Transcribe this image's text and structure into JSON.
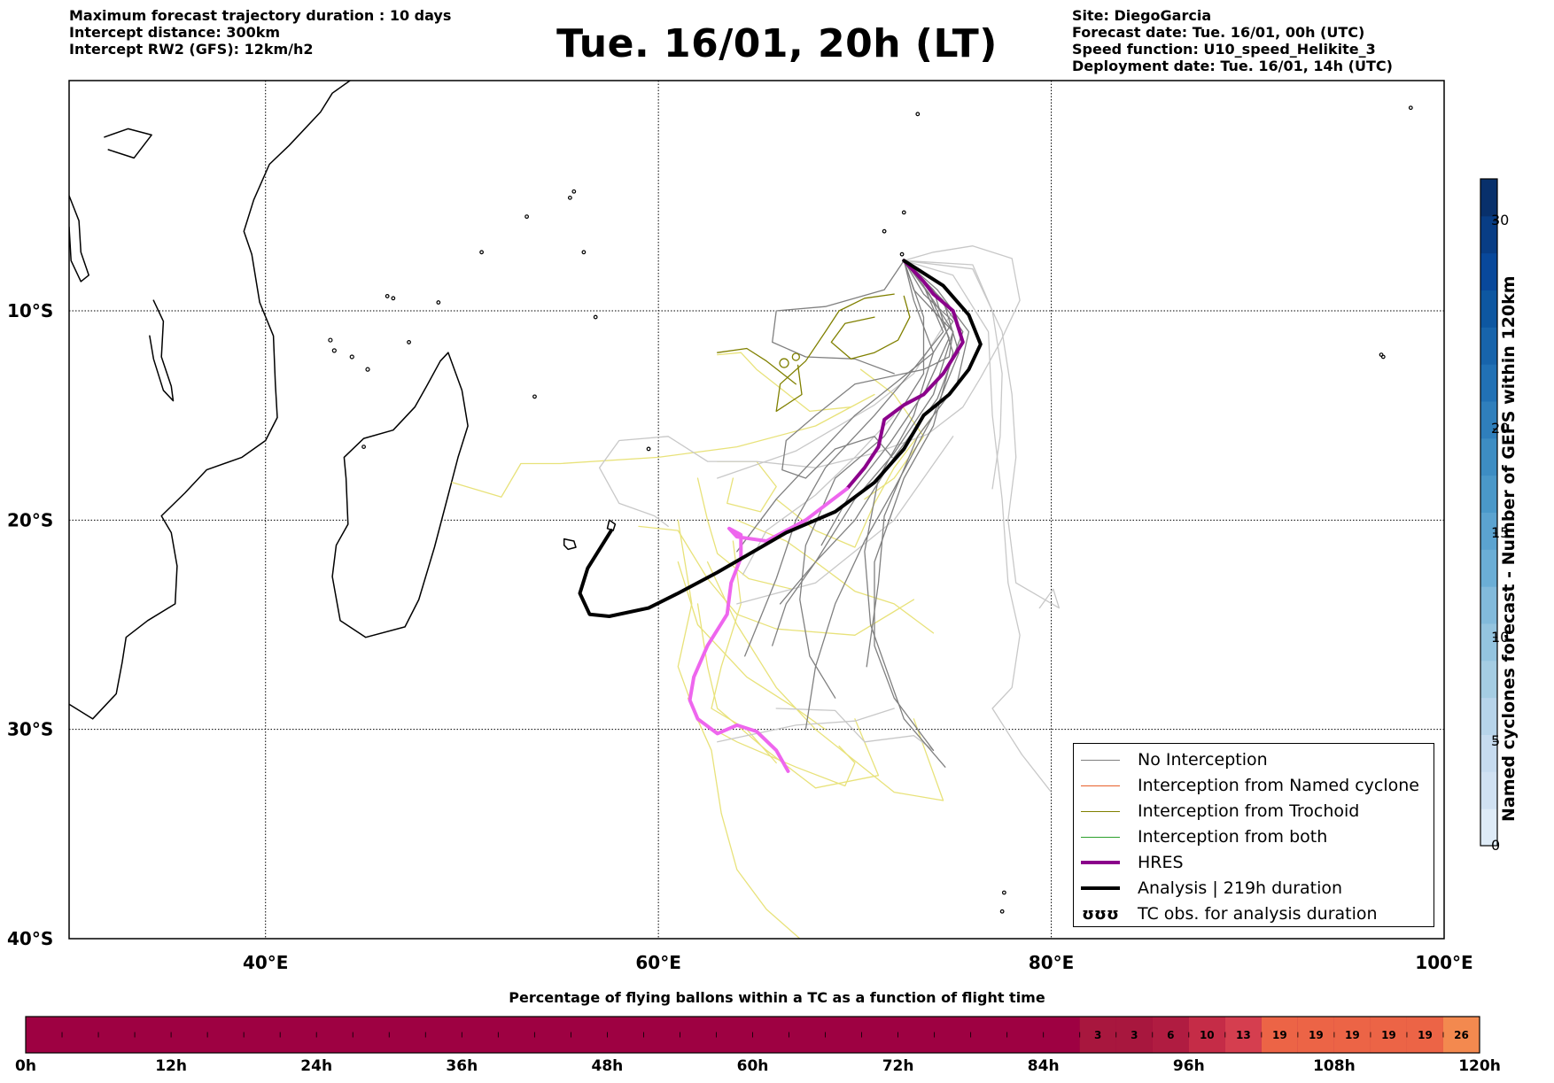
{
  "header": {
    "left_lines": [
      "Maximum forecast trajectory duration : 10 days",
      "Intercept distance: 300km",
      "Intercept RW2 (GFS):  12km/h2"
    ],
    "title": "Tue. 16/01, 20h (LT)",
    "right_lines": [
      "Site: DiegoGarcia",
      "Forecast date: Tue. 16/01, 00h (UTC)",
      "Speed function: U10_speed_Helikite_3",
      "Deployment date: Tue. 16/01, 14h (UTC)"
    ]
  },
  "map": {
    "lon_range": [
      30,
      100
    ],
    "lat_range": [
      -40,
      1
    ],
    "lat_labels": [
      "10°S",
      "20°S",
      "30°S",
      "40°S"
    ],
    "lat_values": [
      -10,
      -20,
      -30,
      -40
    ],
    "lon_labels": [
      "40°E",
      "60°E",
      "80°E",
      "100°E"
    ],
    "lon_values": [
      40,
      60,
      80,
      100
    ],
    "site": {
      "name": "DiegoGarcia",
      "lon": 72.4,
      "lat": -7.3
    }
  },
  "legend": {
    "items": [
      {
        "label": "No Interception",
        "color": "#808080",
        "kind": "thin"
      },
      {
        "label": "Interception from Named cyclone",
        "color": "#e8602a",
        "kind": "thin"
      },
      {
        "label": "Interception from Trochoid",
        "color": "#808000",
        "kind": "thin"
      },
      {
        "label": "Interception from both",
        "color": "#2ca02c",
        "kind": "thin"
      },
      {
        "label": "HRES",
        "color": "#8b008b",
        "kind": "thick"
      },
      {
        "label": "Analysis | 219h duration",
        "color": "#000000",
        "kind": "thick"
      },
      {
        "label": "TC obs. for analysis duration",
        "color": "#000000",
        "kind": "symbol",
        "symbol": "ʊʊʊ"
      }
    ]
  },
  "colorbar": {
    "title": "Named cyclones forecast - Number of GEFS within 120km",
    "ticks": [
      "0",
      "5",
      "10",
      "15",
      "20",
      "30"
    ],
    "tick_values": [
      0,
      5,
      10,
      15,
      20,
      30
    ],
    "max": 32
  },
  "time_bar": {
    "title": "Percentage of flying ballons within a TC as a function of flight time",
    "tick_labels": [
      "0h",
      "12h",
      "24h",
      "36h",
      "48h",
      "60h",
      "72h",
      "84h",
      "96h",
      "108h",
      "120h"
    ],
    "tick_hours": [
      0,
      12,
      24,
      36,
      48,
      60,
      72,
      84,
      96,
      108,
      120
    ],
    "cells": [
      {
        "hour": 87,
        "value": "3",
        "color": "#a8173e"
      },
      {
        "hour": 90,
        "value": "3",
        "color": "#a8173e"
      },
      {
        "hour": 93,
        "value": "6",
        "color": "#b01c41"
      },
      {
        "hour": 96,
        "value": "10",
        "color": "#c52c47"
      },
      {
        "hour": 99,
        "value": "13",
        "color": "#d53e4f"
      },
      {
        "hour": 102,
        "value": "19",
        "color": "#ec6446"
      },
      {
        "hour": 105,
        "value": "19",
        "color": "#ec6446"
      },
      {
        "hour": 108,
        "value": "19",
        "color": "#ec6446"
      },
      {
        "hour": 111,
        "value": "19",
        "color": "#ec6446"
      },
      {
        "hour": 114,
        "value": "19",
        "color": "#ec6446"
      },
      {
        "hour": 117,
        "value": "26",
        "color": "#f3894f"
      }
    ],
    "base_color": "#9e0142"
  },
  "colors": {
    "no_interception": "#808080",
    "no_interception_light": "#c8c8c8",
    "trochoid": "#808000",
    "other": "#e8e27a",
    "hres": "#8b008b",
    "hres_light": "#ee66ee",
    "analysis": "#000000"
  }
}
